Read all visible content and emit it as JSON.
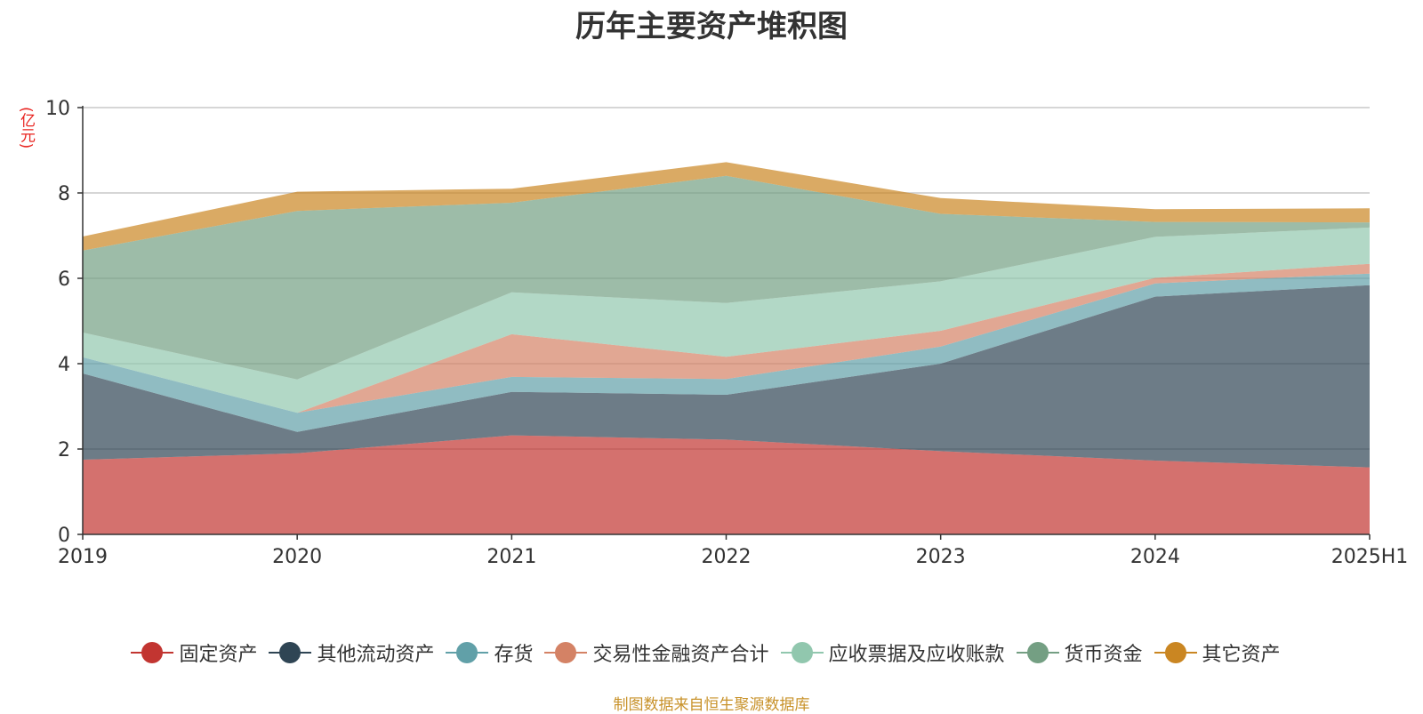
{
  "chart_data": {
    "type": "area",
    "title": "历年主要资产堆积图",
    "ylabel": "(亿元)",
    "xlabel": "",
    "categories": [
      "2019",
      "2020",
      "2021",
      "2022",
      "2023",
      "2024",
      "2025H1"
    ],
    "ylim": [
      0,
      10
    ],
    "yticks": [
      "0",
      "2",
      "4",
      "6",
      "8",
      "10"
    ],
    "stacked": true,
    "grid": true,
    "legend_position": "bottom",
    "series": [
      {
        "name": "固定资产",
        "color": "#c23531",
        "values": [
          1.75,
          1.9,
          2.32,
          2.22,
          1.95,
          1.73,
          1.57
        ]
      },
      {
        "name": "其他流动资产",
        "color": "#2f4554",
        "values": [
          2.02,
          0.5,
          1.02,
          1.05,
          2.05,
          3.84,
          4.27
        ]
      },
      {
        "name": "存货",
        "color": "#61a0a8",
        "values": [
          0.38,
          0.45,
          0.35,
          0.37,
          0.4,
          0.31,
          0.27
        ]
      },
      {
        "name": "交易性金融资产合计",
        "color": "#d48265",
        "values": [
          0.0,
          0.0,
          1.0,
          0.52,
          0.37,
          0.13,
          0.23
        ]
      },
      {
        "name": "应收票据及应收账款",
        "color": "#91c7ae",
        "values": [
          0.58,
          0.78,
          0.98,
          1.26,
          1.16,
          0.96,
          0.85
        ]
      },
      {
        "name": "货币资金",
        "color": "#749f83",
        "values": [
          1.92,
          3.95,
          2.1,
          2.98,
          1.58,
          0.35,
          0.12
        ]
      },
      {
        "name": "其它资产",
        "color": "#ca8622",
        "values": [
          0.33,
          0.45,
          0.33,
          0.32,
          0.37,
          0.3,
          0.33
        ]
      }
    ]
  },
  "source_note": "制图数据来自恒生聚源数据库"
}
